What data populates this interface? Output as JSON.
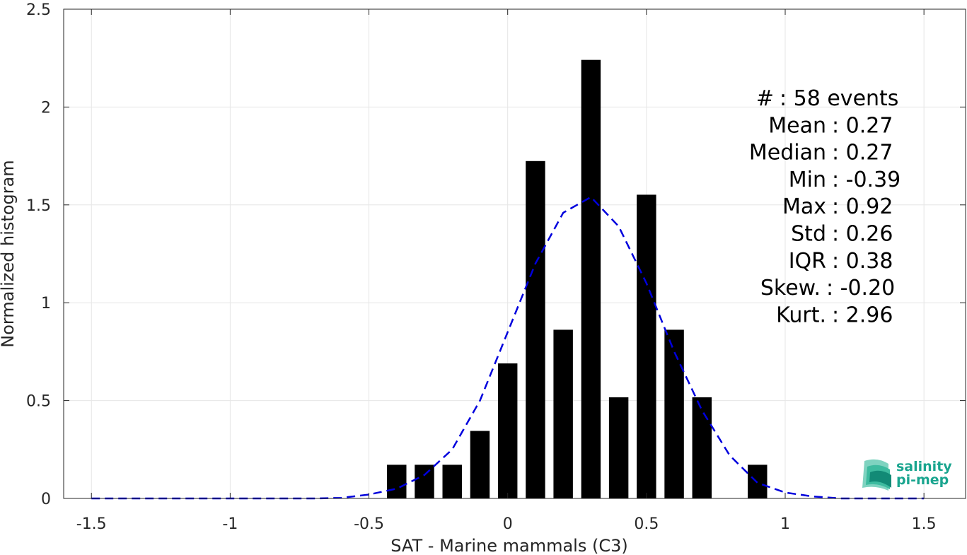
{
  "chart_data": {
    "type": "bar",
    "xlabel": "SAT - Marine mammals (C3)",
    "ylabel": "Normalized histogram",
    "xlim": [
      -1.6,
      1.65
    ],
    "ylim": [
      0,
      2.5
    ],
    "grid": true,
    "xticks": [
      -1.5,
      -1,
      -0.5,
      0,
      0.5,
      1,
      1.5
    ],
    "xtick_labels": [
      "-1.5",
      "-1",
      "-0.5",
      "0",
      "0.5",
      "1",
      "1.5"
    ],
    "yticks": [
      0,
      0.5,
      1,
      1.5,
      2,
      2.5
    ],
    "ytick_labels": [
      "0",
      "0.5",
      "1",
      "1.5",
      "2",
      "2.5"
    ],
    "bar_width": 0.07,
    "bars": [
      {
        "x": -0.4,
        "y": 0.172
      },
      {
        "x": -0.3,
        "y": 0.172
      },
      {
        "x": -0.2,
        "y": 0.172
      },
      {
        "x": -0.1,
        "y": 0.345
      },
      {
        "x": 0.0,
        "y": 0.69
      },
      {
        "x": 0.1,
        "y": 1.724
      },
      {
        "x": 0.2,
        "y": 0.862
      },
      {
        "x": 0.3,
        "y": 2.241
      },
      {
        "x": 0.4,
        "y": 0.517
      },
      {
        "x": 0.5,
        "y": 1.552
      },
      {
        "x": 0.6,
        "y": 0.862
      },
      {
        "x": 0.7,
        "y": 0.517
      },
      {
        "x": 0.9,
        "y": 0.172
      }
    ],
    "bar_color": "#000000",
    "fit_curve": {
      "style": "dashed",
      "color": "#0000dd",
      "x": [
        -1.5,
        -1.4,
        -1.3,
        -1.2,
        -1.1,
        -1.0,
        -0.9,
        -0.8,
        -0.7,
        -0.6,
        -0.5,
        -0.4,
        -0.3,
        -0.2,
        -0.1,
        0.0,
        0.1,
        0.2,
        0.3,
        0.4,
        0.5,
        0.6,
        0.7,
        0.8,
        0.9,
        1.0,
        1.1,
        1.2,
        1.3,
        1.4,
        1.5
      ],
      "y": [
        0.0,
        0.0,
        0.0,
        0.0,
        0.0,
        0.0,
        0.0,
        0.0,
        0.0,
        0.003,
        0.02,
        0.05,
        0.12,
        0.25,
        0.5,
        0.85,
        1.2,
        1.46,
        1.54,
        1.39,
        1.1,
        0.75,
        0.45,
        0.22,
        0.08,
        0.03,
        0.01,
        0.0,
        0.0,
        0.0,
        0.0
      ]
    },
    "stats": [
      {
        "label": "#  : 58 events"
      },
      {
        "label": "Mean : 0.27"
      },
      {
        "label": "Median : 0.27"
      },
      {
        "label": "Min : -0.39"
      },
      {
        "label": "Max : 0.92"
      },
      {
        "label": "Std : 0.26"
      },
      {
        "label": "IQR : 0.38"
      },
      {
        "label": "Skew. : -0.20"
      },
      {
        "label": "Kurt. : 2.96"
      }
    ]
  },
  "logo": {
    "line1": "salinity",
    "line2": "pi-mep",
    "color": "#1aa58f"
  }
}
